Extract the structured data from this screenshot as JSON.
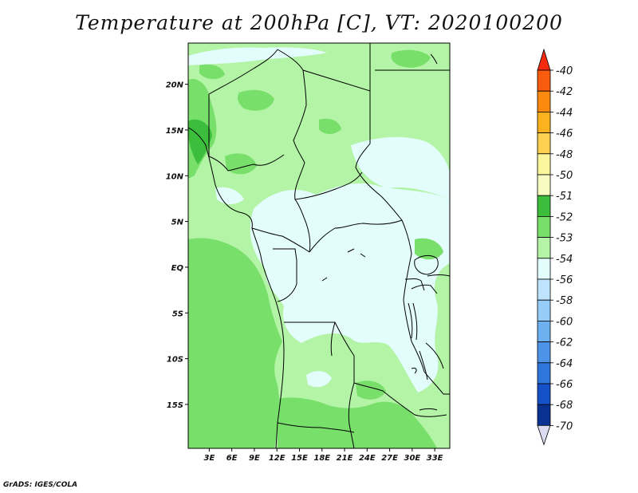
{
  "chart_data": {
    "type": "heatmap",
    "title": "Temperature at 200hPa [C], VT: 2020100200",
    "variable": "Temperature",
    "level": "200hPa",
    "units": "C",
    "valid_time": "2020100200",
    "x_ticks": [
      "3E",
      "6E",
      "9E",
      "12E",
      "15E",
      "18E",
      "21E",
      "24E",
      "27E",
      "30E",
      "33E"
    ],
    "x_tick_values": [
      3,
      6,
      9,
      12,
      15,
      18,
      21,
      24,
      27,
      30,
      33
    ],
    "y_ticks": [
      "20N",
      "15N",
      "10N",
      "5N",
      "EQ",
      "5S",
      "10S",
      "15S"
    ],
    "y_tick_values": [
      20,
      15,
      10,
      5,
      0,
      -5,
      -10,
      -15
    ],
    "xlim": [
      0.2,
      35
    ],
    "ylim": [
      -19.8,
      24.5
    ],
    "colorbar": {
      "placement": "right",
      "labels": [
        "-40",
        "-42",
        "-44",
        "-46",
        "-48",
        "-50",
        "-51",
        "-52",
        "-53",
        "-54",
        "-56",
        "-58",
        "-60",
        "-62",
        "-64",
        "-66",
        "-68",
        "-70"
      ],
      "colors": [
        "#f52a0f",
        "#fa5c0f",
        "#fb8a0f",
        "#fcb21f",
        "#fdd052",
        "#fbf59b",
        "#f7fbc0",
        "#3cbe3c",
        "#78df6b",
        "#b3f4a6",
        "#e3fcfc",
        "#bde4fc",
        "#95cdf8",
        "#6db1f1",
        "#4d94e9",
        "#2f76dc",
        "#1551c8",
        "#083191",
        "#061876"
      ]
    },
    "regions": [
      {
        "value_class": "-52 to -51",
        "area": "West African coast near 15N, 2E"
      },
      {
        "value_class": "-53 to -52",
        "area": "northern Sahara, Gulf of Guinea coast, Atlantic near 5S-15S, southern Angola/Zambia"
      },
      {
        "value_class": "-54 to -53",
        "area": "Sahel, Chad, Sudan, Tanzania/Zambia"
      },
      {
        "value_class": "-56 to -54",
        "area": "Congo Basin and equatorial central Africa"
      }
    ]
  },
  "footer": {
    "credit": "GrADS: IGES/COLA"
  }
}
